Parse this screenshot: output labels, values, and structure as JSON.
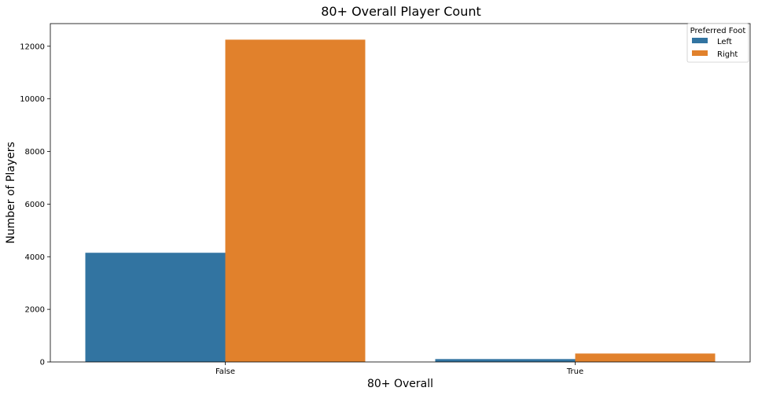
{
  "chart_data": {
    "type": "bar",
    "title": "80+ Overall Player Count",
    "xlabel": "80+ Overall",
    "ylabel": "Number of Players",
    "categories": [
      "False",
      "True"
    ],
    "series": [
      {
        "name": "Left",
        "values": [
          4150,
          110
        ],
        "color": "#3274a1"
      },
      {
        "name": "Right",
        "values": [
          12250,
          320
        ],
        "color": "#e1812c"
      }
    ],
    "ylim": [
      0,
      12860
    ],
    "yticks": [
      "0",
      "2000",
      "4000",
      "6000",
      "8000",
      "10000",
      "12000"
    ],
    "legend": {
      "title": "Preferred Foot",
      "placement": "top-right"
    },
    "grid": false
  }
}
